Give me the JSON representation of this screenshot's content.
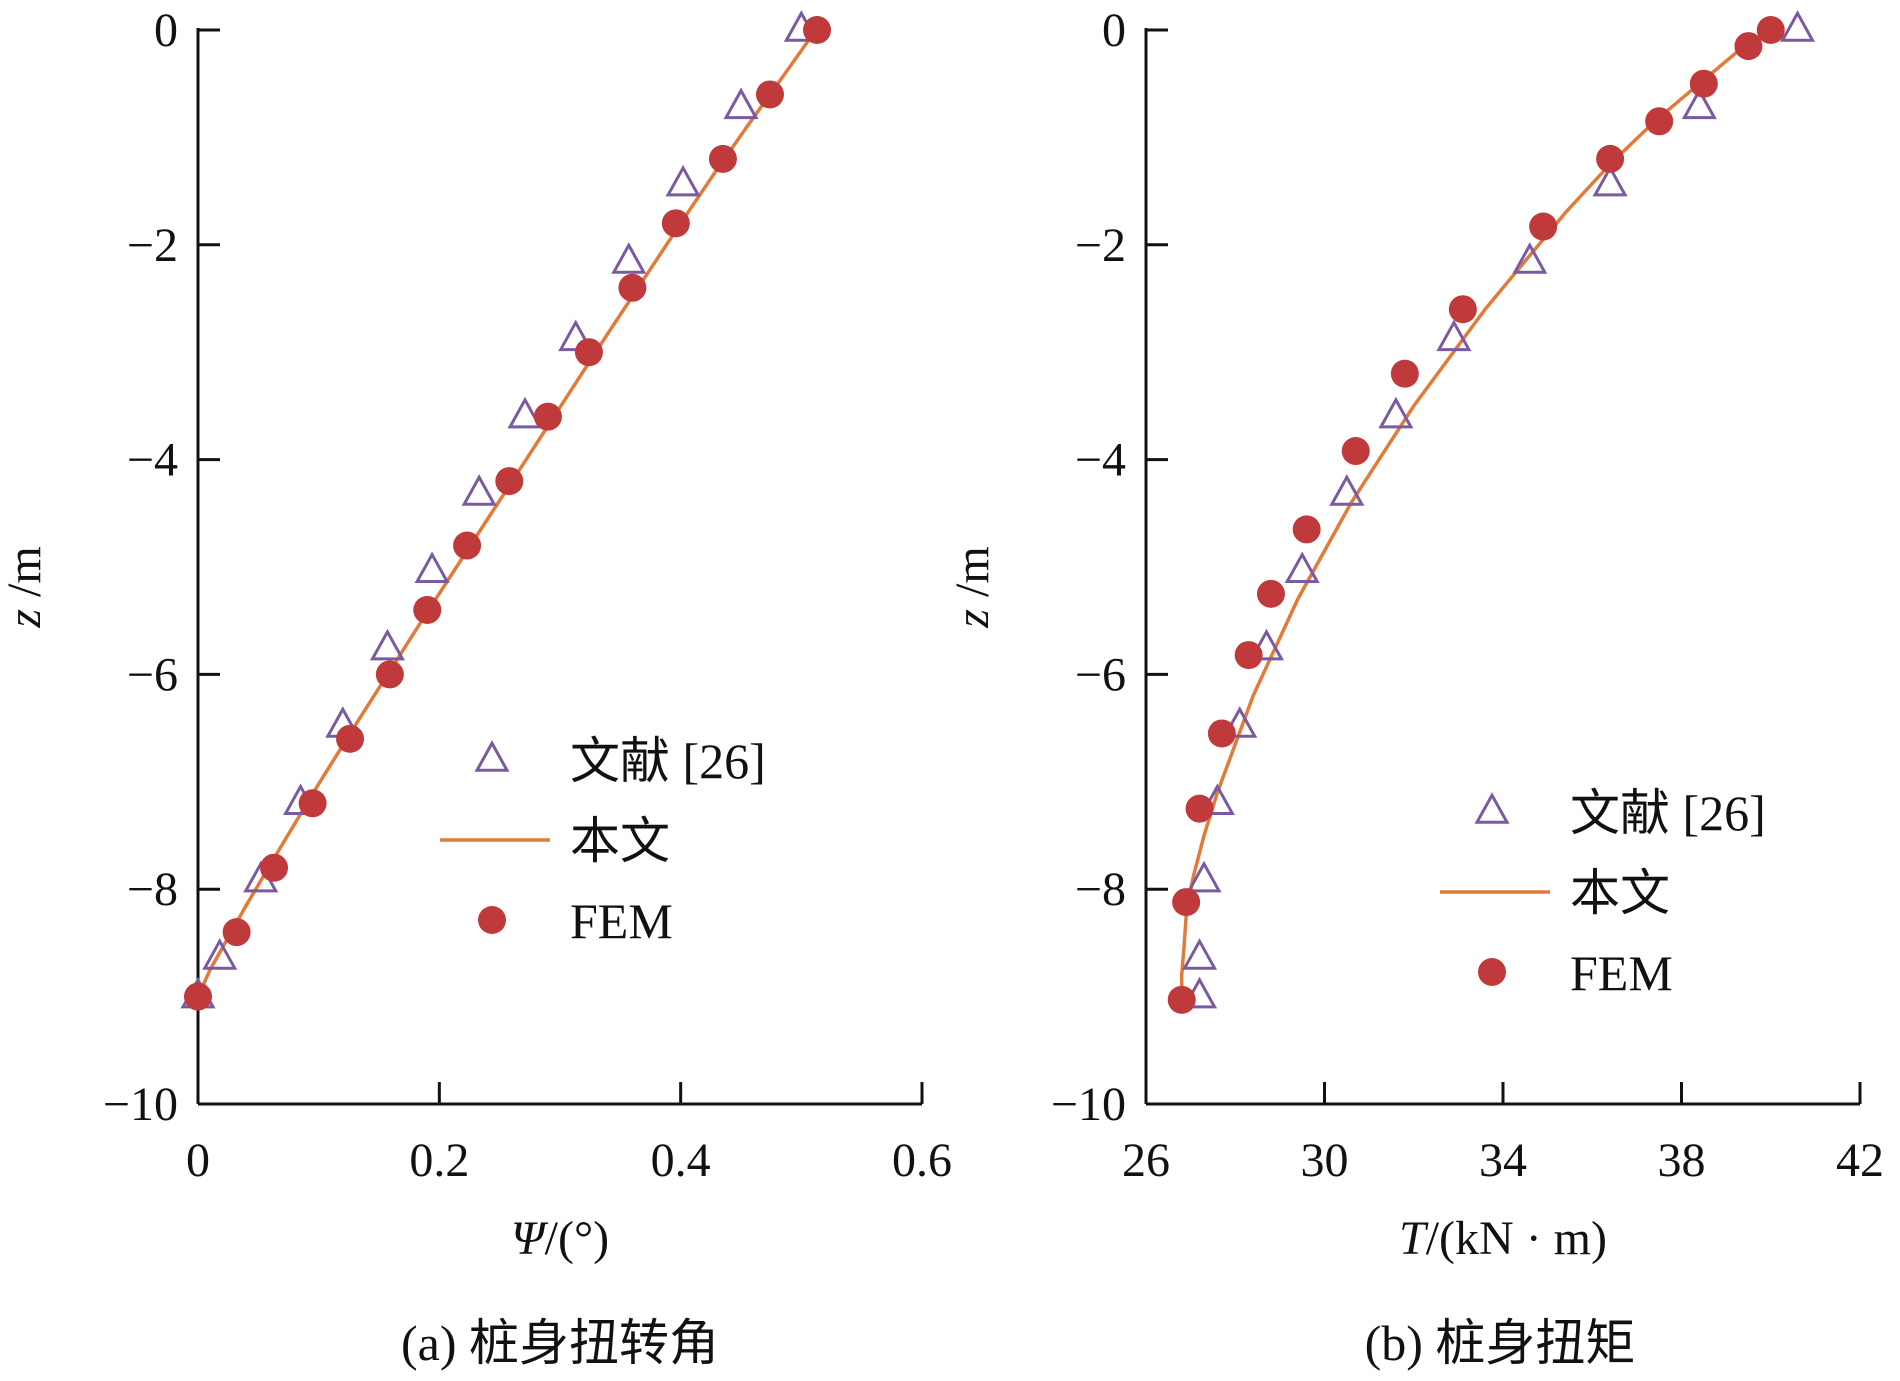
{
  "colors": {
    "line": "#e07b39",
    "fem": "#c0393b",
    "ref_marker": "#7a5aa0",
    "axis": "#111111"
  },
  "chart_data": [
    {
      "type": "line",
      "caption": "(a)  桩身扭转角",
      "xlabel": {
        "symbol": "Ψ",
        "unit": "/(°)"
      },
      "ylabel": {
        "symbol": "z",
        "unit": "/m"
      },
      "xlim": [
        0,
        0.6
      ],
      "ylim": [
        -10,
        0
      ],
      "xticks": [
        0,
        0.2,
        0.4,
        0.6
      ],
      "xtick_labels": [
        "0",
        "0.2",
        "0.4",
        "0.6"
      ],
      "yticks": [
        0,
        -2,
        -4,
        -6,
        -8,
        -10
      ],
      "ytick_labels": [
        "0",
        "−2",
        "−4",
        "−6",
        "−8",
        "−10"
      ],
      "grid": false,
      "legend_position": "center-right",
      "series": [
        {
          "name": "文献 [26]",
          "marker": "triangle-open",
          "x": [
            0.5,
            0.45,
            0.402,
            0.357,
            0.313,
            0.271,
            0.233,
            0.194,
            0.157,
            0.12,
            0.085,
            0.052,
            0.018,
            0.0
          ],
          "y": [
            0,
            -0.72,
            -1.44,
            -2.16,
            -2.88,
            -3.6,
            -4.32,
            -5.04,
            -5.76,
            -6.48,
            -7.2,
            -7.92,
            -8.64,
            -9.0
          ]
        },
        {
          "name": "本文",
          "marker": "line",
          "x": [
            0.512,
            0.49,
            0.46,
            0.43,
            0.4,
            0.37,
            0.34,
            0.31,
            0.28,
            0.25,
            0.22,
            0.19,
            0.16,
            0.13,
            0.1,
            0.07,
            0.04,
            0.01,
            0.0
          ],
          "y": [
            0,
            -0.35,
            -0.82,
            -1.3,
            -1.8,
            -2.31,
            -2.82,
            -3.34,
            -3.86,
            -4.38,
            -4.9,
            -5.42,
            -5.95,
            -6.48,
            -7.02,
            -7.58,
            -8.15,
            -8.75,
            -9.0
          ]
        },
        {
          "name": "FEM",
          "marker": "circle-filled",
          "x": [
            0.513,
            0.474,
            0.435,
            0.396,
            0.36,
            0.324,
            0.29,
            0.258,
            0.223,
            0.19,
            0.159,
            0.126,
            0.095,
            0.063,
            0.032,
            0.0
          ],
          "y": [
            0,
            -0.6,
            -1.2,
            -1.8,
            -2.4,
            -3.0,
            -3.6,
            -4.2,
            -4.8,
            -5.4,
            -6.0,
            -6.6,
            -7.2,
            -7.8,
            -8.4,
            -9.0
          ]
        }
      ]
    },
    {
      "type": "line",
      "caption": "(b)  桩身扭矩",
      "xlabel": {
        "symbol": "T",
        "unit": "/(kN · m)"
      },
      "ylabel": {
        "symbol": "z",
        "unit": "/m"
      },
      "xlim": [
        26,
        42
      ],
      "ylim": [
        -10,
        0
      ],
      "xticks": [
        26,
        30,
        34,
        38,
        42
      ],
      "xtick_labels": [
        "26",
        "30",
        "34",
        "38",
        "42"
      ],
      "yticks": [
        0,
        -2,
        -4,
        -6,
        -8,
        -10
      ],
      "ytick_labels": [
        "0",
        "−2",
        "−4",
        "−6",
        "−8",
        "−10"
      ],
      "grid": false,
      "legend_position": "lower-right",
      "series": [
        {
          "name": "文献 [26]",
          "marker": "triangle-open",
          "x": [
            40.6,
            38.4,
            36.4,
            34.6,
            32.9,
            31.6,
            30.5,
            29.5,
            28.7,
            28.1,
            27.6,
            27.3,
            27.2,
            27.2
          ],
          "y": [
            0,
            -0.72,
            -1.44,
            -2.16,
            -2.88,
            -3.6,
            -4.32,
            -5.04,
            -5.76,
            -6.48,
            -7.2,
            -7.92,
            -8.64,
            -9.0
          ]
        },
        {
          "name": "本文",
          "marker": "line",
          "x": [
            40.2,
            39.4,
            38.4,
            37.4,
            36.4,
            35.4,
            34.5,
            33.6,
            32.8,
            32.0,
            31.3,
            30.6,
            30.0,
            29.4,
            28.9,
            28.4,
            28.0,
            27.6,
            27.3,
            27.05,
            26.9,
            26.85,
            26.8,
            26.8
          ],
          "y": [
            0,
            -0.15,
            -0.5,
            -0.85,
            -1.25,
            -1.7,
            -2.15,
            -2.6,
            -3.05,
            -3.5,
            -3.95,
            -4.4,
            -4.85,
            -5.3,
            -5.75,
            -6.2,
            -6.65,
            -7.1,
            -7.5,
            -7.9,
            -8.25,
            -8.55,
            -8.8,
            -9.0
          ]
        },
        {
          "name": "FEM",
          "marker": "circle-filled",
          "x": [
            40.0,
            39.5,
            38.5,
            37.5,
            36.4,
            34.9,
            33.1,
            31.8,
            30.7,
            29.6,
            28.8,
            28.3,
            27.7,
            27.2,
            26.9,
            26.8
          ],
          "y": [
            0,
            -0.15,
            -0.5,
            -0.85,
            -1.2,
            -1.83,
            -2.6,
            -3.2,
            -3.92,
            -4.65,
            -5.25,
            -5.82,
            -6.55,
            -7.25,
            -8.12,
            -9.03
          ]
        }
      ]
    }
  ]
}
